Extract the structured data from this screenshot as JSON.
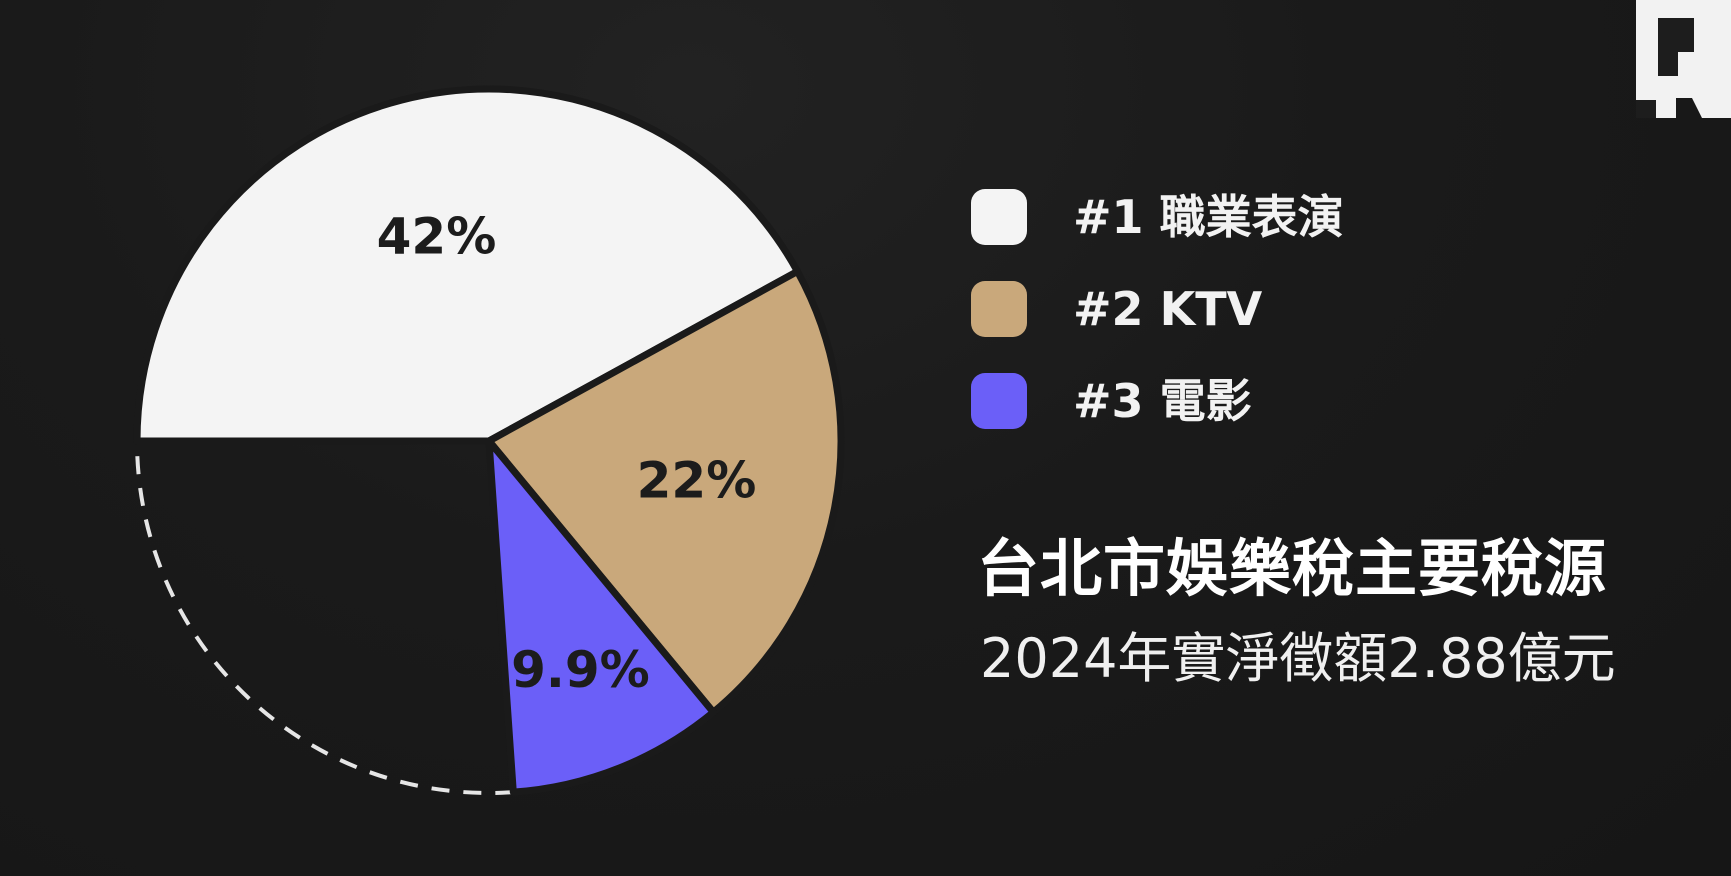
{
  "chart_data": {
    "type": "pie",
    "title": "台北市娛樂稅主要稅源",
    "subtitle": "2024年實淨徵額2.88億元",
    "slices": [
      {
        "label": "#1 職業表演",
        "value": 42,
        "display": "42%",
        "color": "#f4f4f4"
      },
      {
        "label": "#2 KTV",
        "value": 22,
        "display": "22%",
        "color": "#c9a87b"
      },
      {
        "label": "#3 電影",
        "value": 9.9,
        "display": "9.9%",
        "color": "#6b5ff8"
      }
    ],
    "remainder_style": "dashed-outline",
    "legend_position": "right"
  },
  "logo": {
    "icon": "publisher-logo-icon"
  }
}
